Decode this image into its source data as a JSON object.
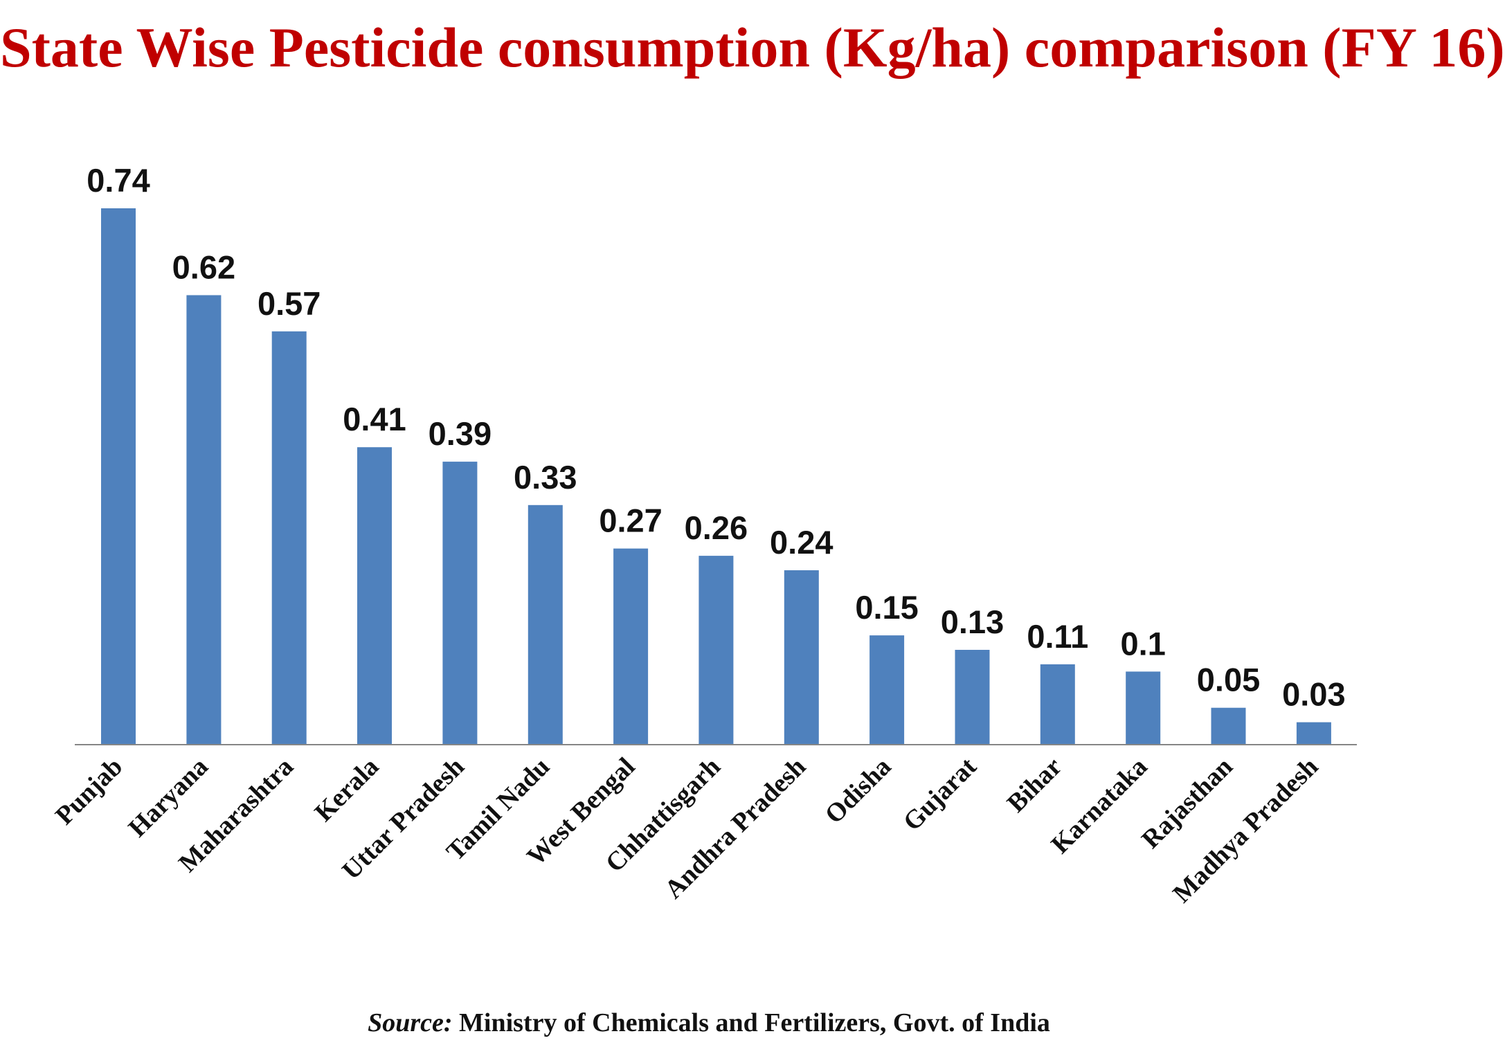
{
  "title": "State Wise Pesticide consumption (Kg/ha) comparison (FY 16)",
  "source": {
    "prefix": "Source:",
    "text": " Ministry of Chemicals and Fertilizers, Govt. of India"
  },
  "colors": {
    "title": "#c00000",
    "bar": "#4f81bd",
    "axis": "#868686",
    "text": "#111111"
  },
  "chart_data": {
    "type": "bar",
    "categories": [
      "Punjab",
      "Haryana",
      "Maharashtra",
      "Kerala",
      "Uttar Pradesh",
      "Tamil Nadu",
      "West Bengal",
      "Chhattisgarh",
      "Andhra Pradesh",
      "Odisha",
      "Gujarat",
      "Bihar",
      "Karnataka",
      "Rajasthan",
      "Madhya Pradesh"
    ],
    "values": [
      0.74,
      0.62,
      0.57,
      0.41,
      0.39,
      0.33,
      0.27,
      0.26,
      0.24,
      0.15,
      0.13,
      0.11,
      0.1,
      0.05,
      0.03
    ],
    "value_labels": [
      "0.74",
      "0.62",
      "0.57",
      "0.41",
      "0.39",
      "0.33",
      "0.27",
      "0.26",
      "0.24",
      "0.15",
      "0.13",
      "0.11",
      "0.1",
      "0.05",
      "0.03"
    ],
    "title": "State Wise Pesticide consumption (Kg/ha) comparison (FY 16)",
    "xlabel": "",
    "ylabel": "",
    "ylim": [
      0,
      0.74
    ],
    "grid": false,
    "legend": "none"
  }
}
